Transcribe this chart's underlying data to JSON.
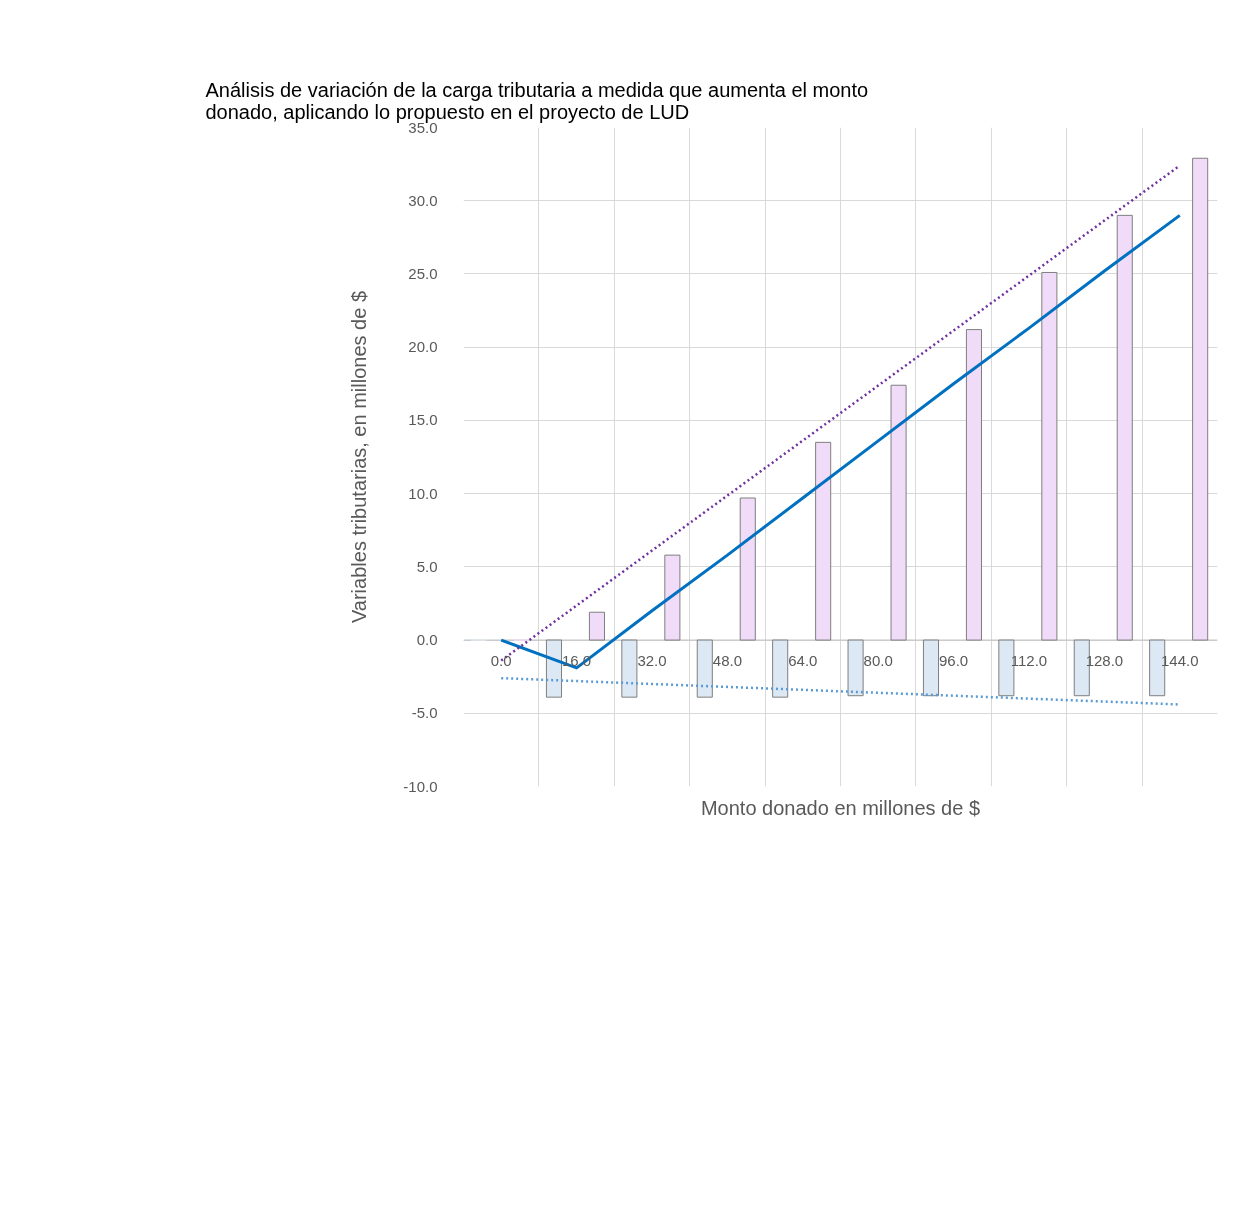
{
  "chart_data": {
    "type": "bar",
    "title": "Análisis de variación de la carga tributaria a medida que aumenta el monto donado, aplicando lo propuesto en el proyecto de LUD",
    "xlabel": "Monto donado en millones de $",
    "ylabel": "Variables tributarias, en millones de $",
    "categories": [
      "0.0",
      "16.0",
      "32.0",
      "48.0",
      "64.0",
      "80.0",
      "96.0",
      "112.0",
      "128.0",
      "144.0"
    ],
    "series": [
      {
        "color": "#dce8f4",
        "values": [
          0,
          -3.9,
          -3.9,
          -3.9,
          -3.9,
          -3.8,
          -3.8,
          -3.8,
          -3.8,
          -3.8
        ]
      },
      {
        "color": "#f0dcf8",
        "values": [
          0,
          1.9,
          5.8,
          9.7,
          13.5,
          17.4,
          21.2,
          25.1,
          29.0,
          32.9
        ]
      },
      {
        "type": "line",
        "color": "#0070c0",
        "line_style": "solid",
        "values": [
          0,
          -1.9,
          2.0,
          5.8,
          9.7,
          13.6,
          17.5,
          21.3,
          25.2,
          29.0
        ]
      },
      {
        "type": "line",
        "color": "#7030a0",
        "line_style": "dotted",
        "x": [
          "0.0",
          "144.0"
        ],
        "values": [
          -1.4,
          32.4
        ]
      },
      {
        "type": "line",
        "color": "#5b9bd5",
        "line_style": "dotted",
        "x": [
          "0.0",
          "144.0"
        ],
        "values": [
          -2.6,
          -4.4
        ]
      }
    ],
    "ylim": [
      -10,
      35
    ],
    "yticks": [
      {
        "value": -10,
        "label": "-10.0"
      },
      {
        "value": -5,
        "label": "-5.0"
      },
      {
        "value": 0,
        "label": "0.0"
      },
      {
        "value": 5,
        "label": "5.0"
      },
      {
        "value": 10,
        "label": "10.0"
      },
      {
        "value": 15,
        "label": "15.0"
      },
      {
        "value": 20,
        "label": "20.0"
      },
      {
        "value": 25,
        "label": "25.0"
      },
      {
        "value": 30,
        "label": "30.0"
      },
      {
        "value": 35,
        "label": "35.0"
      }
    ],
    "grid": true
  }
}
